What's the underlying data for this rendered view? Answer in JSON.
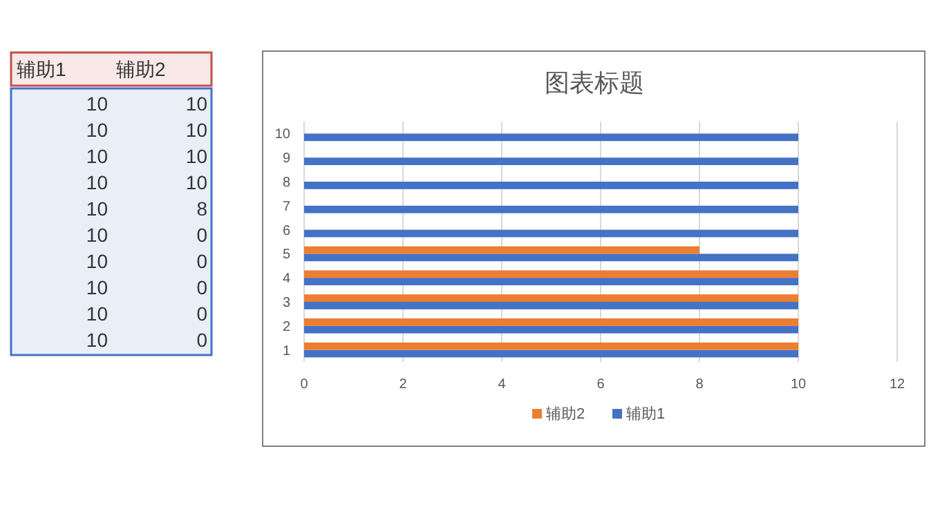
{
  "chart_data": {
    "type": "bar",
    "orientation": "horizontal",
    "title": "图表标题",
    "categories": [
      "10",
      "9",
      "8",
      "7",
      "6",
      "5",
      "4",
      "3",
      "2",
      "1"
    ],
    "series": [
      {
        "name": "辅助1",
        "color": "#4472c4",
        "values": [
          10,
          10,
          10,
          10,
          10,
          10,
          10,
          10,
          10,
          10
        ]
      },
      {
        "name": "辅助2",
        "color": "#ed7d31",
        "values": [
          0,
          0,
          0,
          0,
          0,
          8,
          10,
          10,
          10,
          10
        ]
      }
    ],
    "xlim": [
      0,
      12
    ],
    "xticks": [
      0,
      2,
      4,
      6,
      8,
      10,
      12
    ],
    "grid": "x",
    "legend": "bottom",
    "annotations": [
      "10",
      "10",
      "10",
      "10",
      "10",
      "10",
      "10",
      "10",
      "10",
      "8",
      "10",
      "0",
      "10",
      "0",
      "10",
      "0",
      "10",
      "0",
      "10",
      "0"
    ]
  }
}
